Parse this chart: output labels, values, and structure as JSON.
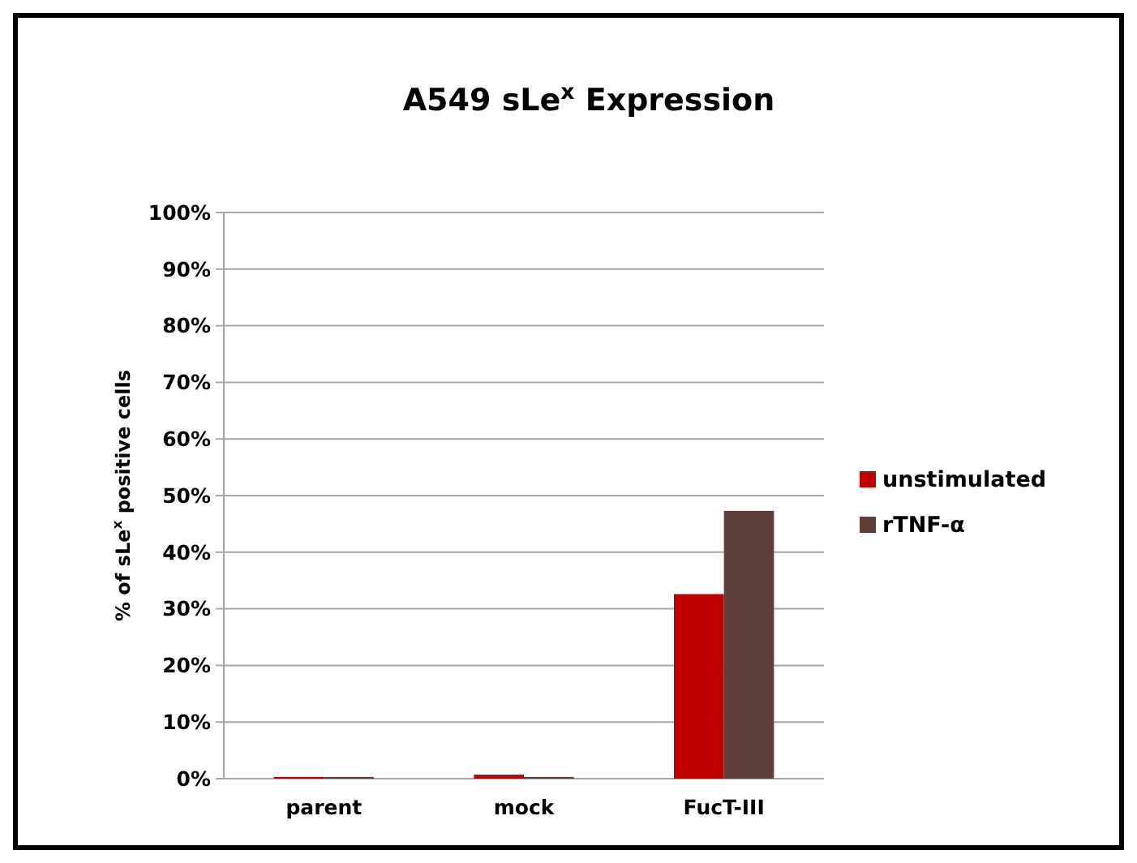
{
  "chart_data": {
    "type": "bar",
    "title": "A549 sLe$^{x}$ Expression",
    "ylabel": "% of sLe$^{x}$ positive cells",
    "categories": [
      "parent",
      "mock",
      "FucT-III"
    ],
    "series": [
      {
        "name": "unstimulated",
        "color": "#c00000",
        "values": [
          0.3,
          0.7,
          32.6
        ]
      },
      {
        "name": "rTNF-α",
        "color": "#5e4038",
        "values": [
          0.3,
          0.3,
          47.3
        ]
      }
    ],
    "ylim": [
      0,
      100
    ],
    "yticks": [
      {
        "value": 0,
        "label": "0%"
      },
      {
        "value": 10,
        "label": "10%"
      },
      {
        "value": 20,
        "label": "20%"
      },
      {
        "value": 30,
        "label": "30%"
      },
      {
        "value": 40,
        "label": "40%"
      },
      {
        "value": 50,
        "label": "50%"
      },
      {
        "value": 60,
        "label": "60%"
      },
      {
        "value": 70,
        "label": "70%"
      },
      {
        "value": 80,
        "label": "80%"
      },
      {
        "value": 90,
        "label": "90%"
      },
      {
        "value": 100,
        "label": "100%"
      }
    ],
    "grid": "y",
    "legend": "right"
  }
}
